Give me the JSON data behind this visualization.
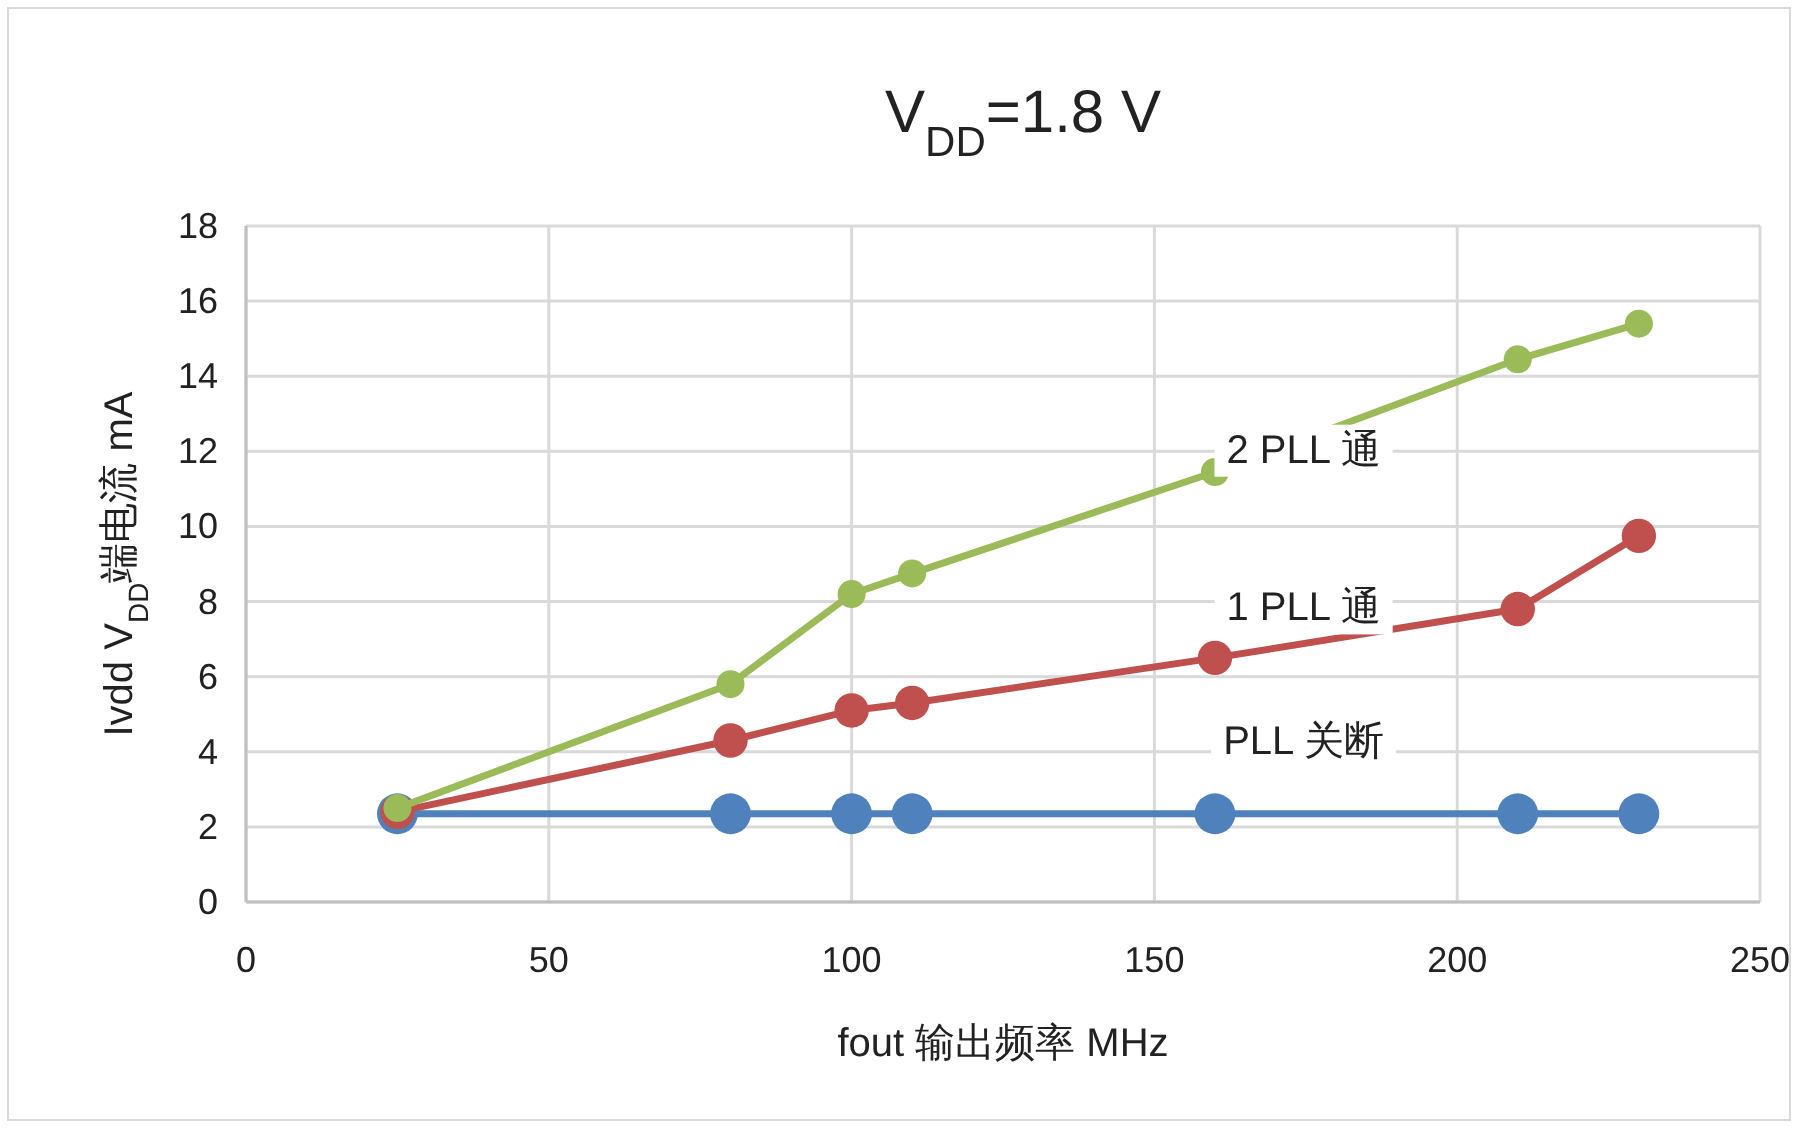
{
  "chart_data": {
    "type": "line",
    "title": "V$_{DD}$=1.8 V",
    "xlabel": "fout 输出频率  MHz",
    "ylabel": "Ivdd  V$_{DD}$端电流 mA",
    "x": [
      25,
      80,
      100,
      110,
      160,
      210,
      230
    ],
    "series": [
      {
        "name": "PLL 关断",
        "color": "#4f81bd",
        "values": [
          2.35,
          2.35,
          2.35,
          2.35,
          2.35,
          2.35,
          2.35
        ]
      },
      {
        "name": "1 PLL 通",
        "color": "#c0504d",
        "values": [
          2.4,
          4.3,
          5.1,
          5.3,
          6.5,
          7.8,
          9.75
        ]
      },
      {
        "name": "2 PLL 通",
        "color": "#9bbb59",
        "values": [
          2.5,
          5.8,
          8.2,
          8.75,
          11.45,
          14.45,
          15.4
        ]
      }
    ],
    "xlim": [
      0,
      250
    ],
    "ylim": [
      0,
      18
    ],
    "xticks": [
      0,
      50,
      100,
      150,
      200,
      250
    ],
    "yticks": [
      0,
      2,
      4,
      6,
      8,
      10,
      12,
      14,
      16,
      18
    ],
    "grid": true,
    "marker": "circle",
    "line_style": "solid"
  }
}
